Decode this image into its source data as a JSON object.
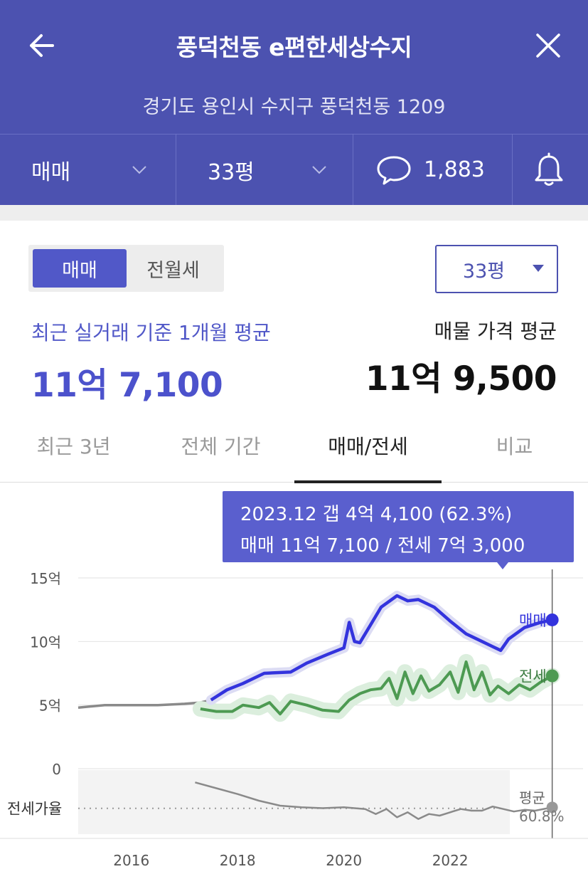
{
  "header": {
    "title": "풍덕천동 e편한세상수지",
    "address": "경기도 용인시 수지구 풍덕천동 1209",
    "back_icon": "arrow-left-icon",
    "close_icon": "close-icon"
  },
  "toolbar": {
    "deal_type": "매매",
    "size": "33평",
    "comments_count": "1,883",
    "comment_icon": "speech-bubble-icon",
    "bell_icon": "bell-icon"
  },
  "segment": {
    "options": [
      "매매",
      "전월세"
    ],
    "selected": "매매"
  },
  "size_select": {
    "value": "33평"
  },
  "summary": {
    "recent_label": "최근 실거래 기준 1개월 평균",
    "recent_value": "11억 7,100",
    "listing_label": "매물 가격 평균",
    "listing_value": "11억 9,500"
  },
  "tabs": [
    "최근 3년",
    "전체 기간",
    "매매/전세",
    "비교"
  ],
  "active_tab": 2,
  "tooltip": {
    "line1": "2023.12  갭 4억 4,100 (62.3%)",
    "line2": "매매 11억 7,100 / 전세 7억 3,000"
  },
  "chart_data": {
    "type": "line",
    "yticks": [
      "15억",
      "10억",
      "5억",
      "0"
    ],
    "ylim": [
      0,
      15
    ],
    "xticks": [
      "2016",
      "2018",
      "2020",
      "2022"
    ],
    "xlim": [
      2015.0,
      2024.5
    ],
    "ratio_label": "전세가율",
    "ratio_avg_label": "평균",
    "ratio_avg_value": "60.8%",
    "colors": {
      "sale": "#3333dd",
      "jeonse": "#4d9a52",
      "early": "#8a8a8a",
      "ratio": "#8a8a8a"
    },
    "series": [
      {
        "name": "매매",
        "x": [
          2015.0,
          2015.5,
          2016.0,
          2016.5,
          2017.0,
          2017.3,
          2017.5,
          2017.8,
          2018.1,
          2018.5,
          2019.0,
          2019.3,
          2019.7,
          2020.0,
          2020.1,
          2020.2,
          2020.3,
          2020.5,
          2020.7,
          2021.0,
          2021.2,
          2021.4,
          2021.7,
          2022.0,
          2022.3,
          2022.6,
          2022.8,
          2022.95,
          2023.1,
          2023.4,
          2023.7,
          2023.92
        ],
        "y": [
          4.8,
          5.0,
          5.0,
          5.0,
          5.1,
          5.2,
          5.4,
          6.2,
          6.7,
          7.5,
          7.6,
          8.3,
          9.0,
          9.5,
          11.5,
          10.0,
          9.9,
          11.3,
          12.7,
          13.6,
          13.2,
          13.3,
          12.7,
          11.6,
          10.6,
          10.0,
          9.6,
          9.3,
          10.2,
          11.1,
          11.5,
          11.7
        ]
      },
      {
        "name": "전세",
        "x": [
          2017.3,
          2017.6,
          2017.9,
          2018.1,
          2018.4,
          2018.6,
          2018.8,
          2019.0,
          2019.3,
          2019.6,
          2019.9,
          2020.1,
          2020.3,
          2020.5,
          2020.7,
          2020.85,
          2021.0,
          2021.15,
          2021.3,
          2021.45,
          2021.6,
          2021.8,
          2022.0,
          2022.15,
          2022.3,
          2022.45,
          2022.6,
          2022.75,
          2022.9,
          2023.1,
          2023.3,
          2023.5,
          2023.7,
          2023.92
        ],
        "y": [
          4.7,
          4.5,
          4.5,
          5.0,
          4.8,
          5.2,
          4.3,
          5.3,
          5.0,
          4.6,
          4.5,
          5.4,
          5.9,
          6.2,
          6.3,
          7.1,
          5.5,
          7.6,
          5.9,
          7.3,
          6.1,
          6.6,
          7.6,
          6.0,
          8.4,
          6.2,
          7.6,
          5.8,
          6.5,
          5.9,
          6.6,
          6.2,
          6.8,
          7.3
        ]
      }
    ],
    "ratio": {
      "x": [
        2017.2,
        2017.6,
        2018.0,
        2018.4,
        2018.8,
        2019.2,
        2019.6,
        2020.0,
        2020.4,
        2020.6,
        2020.8,
        2021.0,
        2021.2,
        2021.4,
        2021.6,
        2021.8,
        2022.0,
        2022.2,
        2022.4,
        2022.6,
        2022.8,
        2023.0,
        2023.2,
        2023.4,
        2023.6,
        2023.92
      ],
      "y": [
        92,
        85,
        78,
        70,
        64,
        62,
        61,
        62,
        60,
        54,
        60,
        50,
        56,
        48,
        54,
        52,
        56,
        60,
        58,
        58,
        63,
        60,
        57,
        59,
        58,
        62
      ]
    },
    "ratio_average": 60.8,
    "marker_x": 2023.92,
    "marker_label": "2023.12"
  }
}
